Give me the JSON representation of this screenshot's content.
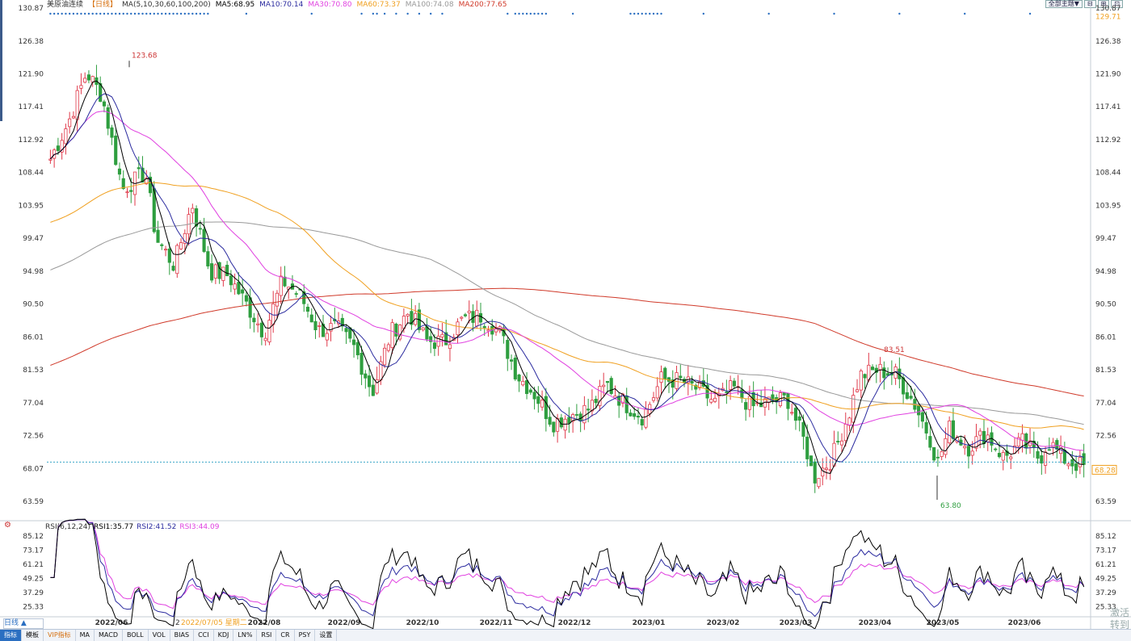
{
  "legend": {
    "title": "美原油连续",
    "period": "【日线】",
    "ma_label": "MA(5,10,30,60,100,200)",
    "ma5": "MA5:68.95",
    "ma10": "MA10:70.14",
    "ma30": "MA30:70.80",
    "ma60": "MA60:73.37",
    "ma100": "MA100:74.08",
    "ma200": "MA200:77.65"
  },
  "top_buttons": [
    "全部主题▼",
    "⊟",
    "⊞",
    "⊡"
  ],
  "rsi_legend": {
    "label": "RSI(6,12,24)",
    "rsi1": "RSI1:35.77",
    "rsi2": "RSI2:41.52",
    "rsi3": "RSI3:44.09"
  },
  "period_button": "日线 ▲",
  "date_hover": "2022/07/05 星期二",
  "bottom_tabs": [
    "指标",
    "模板",
    "VIP指标",
    "MA",
    "MACD",
    "BOLL",
    "VOL",
    "BIAS",
    "CCI",
    "KDJ",
    "LN%",
    "RSI",
    "CR",
    "PSY",
    "设置"
  ],
  "watermark": [
    "激活",
    "转到"
  ],
  "colors": {
    "up": "#e0394a",
    "down": "#2e9e3f",
    "ma5": "#000000",
    "ma10": "#2b2b9f",
    "ma30": "#e040e0",
    "ma60": "#f0a020",
    "ma100": "#999999",
    "ma200": "#d03a2a",
    "rsi1": "#000000",
    "rsi2": "#2b2b9f",
    "rsi3": "#e040e0",
    "last_price": "#f0a020"
  },
  "chart_data": [
    {
      "type": "candlestick",
      "title": "美原油连续",
      "y_ticks": [
        "130.87",
        "126.38",
        "121.90",
        "117.41",
        "112.92",
        "108.44",
        "103.95",
        "99.47",
        "94.98",
        "90.50",
        "86.01",
        "81.53",
        "77.04",
        "72.56",
        "68.07",
        "63.59"
      ],
      "ylim": [
        61.5,
        130.87
      ],
      "x_ticks": [
        "2022/06",
        "2022/08",
        "2022/09",
        "2022/10",
        "2022/11",
        "2022/12",
        "2023/01",
        "2023/02",
        "2023/03",
        "2023/04",
        "2023/05",
        "2023/06"
      ],
      "annotations": {
        "high": "123.68",
        "mid_high": "83.51",
        "low": "63.80",
        "last": "68.28",
        "right_top": "129.71"
      },
      "approx_close_path": [
        [
          "2022/05/25",
          110.3
        ],
        [
          "2022/06/01",
          115.3
        ],
        [
          "2022/06/08",
          122.1
        ],
        [
          "2022/06/14",
          118.9
        ],
        [
          "2022/06/22",
          106.2
        ],
        [
          "2022/07/01",
          108.4
        ],
        [
          "2022/07/05",
          99.5
        ],
        [
          "2022/07/12",
          95.8
        ],
        [
          "2022/07/19",
          104.2
        ],
        [
          "2022/07/26",
          94.9
        ],
        [
          "2022/08/02",
          94.4
        ],
        [
          "2022/08/09",
          90.5
        ],
        [
          "2022/08/16",
          86.5
        ],
        [
          "2022/08/23",
          93.7
        ],
        [
          "2022/08/30",
          91.6
        ],
        [
          "2022/09/06",
          86.9
        ],
        [
          "2022/09/13",
          87.3
        ],
        [
          "2022/09/20",
          84.5
        ],
        [
          "2022/09/27",
          78.5
        ],
        [
          "2022/10/04",
          86.5
        ],
        [
          "2022/10/11",
          89.4
        ],
        [
          "2022/10/18",
          85.5
        ],
        [
          "2022/10/25",
          85.3
        ],
        [
          "2022/11/01",
          88.4
        ],
        [
          "2022/11/08",
          88.9
        ],
        [
          "2022/11/15",
          86.9
        ],
        [
          "2022/11/22",
          80.9
        ],
        [
          "2022/11/29",
          78.2
        ],
        [
          "2022/12/06",
          74.3
        ],
        [
          "2022/12/13",
          75.4
        ],
        [
          "2022/12/20",
          76.2
        ],
        [
          "2022/12/27",
          79.5
        ],
        [
          "2023/01/03",
          76.9
        ],
        [
          "2023/01/10",
          75.1
        ],
        [
          "2023/01/17",
          80.2
        ],
        [
          "2023/01/24",
          80.1
        ],
        [
          "2023/01/31",
          78.9
        ],
        [
          "2023/02/07",
          77.1
        ],
        [
          "2023/02/14",
          79.1
        ],
        [
          "2023/02/21",
          76.4
        ],
        [
          "2023/02/28",
          77.1
        ],
        [
          "2023/03/07",
          77.6
        ],
        [
          "2023/03/14",
          71.3
        ],
        [
          "2023/03/17",
          66.7
        ],
        [
          "2023/03/24",
          69.3
        ],
        [
          "2023/03/31",
          75.7
        ],
        [
          "2023/04/04",
          80.7
        ],
        [
          "2023/04/11",
          81.5
        ],
        [
          "2023/04/18",
          80.9
        ],
        [
          "2023/04/25",
          77.1
        ],
        [
          "2023/05/02",
          71.7
        ],
        [
          "2023/05/04",
          68.6
        ],
        [
          "2023/05/09",
          73.7
        ],
        [
          "2023/05/16",
          70.9
        ],
        [
          "2023/05/23",
          72.9
        ],
        [
          "2023/05/30",
          69.5
        ],
        [
          "2023/06/06",
          71.7
        ],
        [
          "2023/06/13",
          69.4
        ],
        [
          "2023/06/16",
          71.8
        ],
        [
          "2023/06/23",
          69.2
        ],
        [
          "2023/06/30",
          68.3
        ]
      ],
      "series": [
        {
          "name": "MA5",
          "value": 68.95
        },
        {
          "name": "MA10",
          "value": 70.14
        },
        {
          "name": "MA30",
          "value": 70.8
        },
        {
          "name": "MA60",
          "value": 73.37
        },
        {
          "name": "MA100",
          "value": 74.08
        },
        {
          "name": "MA200",
          "value": 77.65
        }
      ],
      "grid": false
    },
    {
      "type": "line",
      "title": "RSI(6,12,24)",
      "y_ticks": [
        "85.12",
        "73.17",
        "61.21",
        "49.25",
        "37.29",
        "25.33"
      ],
      "ylim": [
        18,
        88
      ],
      "series": [
        {
          "name": "RSI1",
          "value": 35.77
        },
        {
          "name": "RSI2",
          "value": 41.52
        },
        {
          "name": "RSI3",
          "value": 44.09
        }
      ]
    }
  ]
}
